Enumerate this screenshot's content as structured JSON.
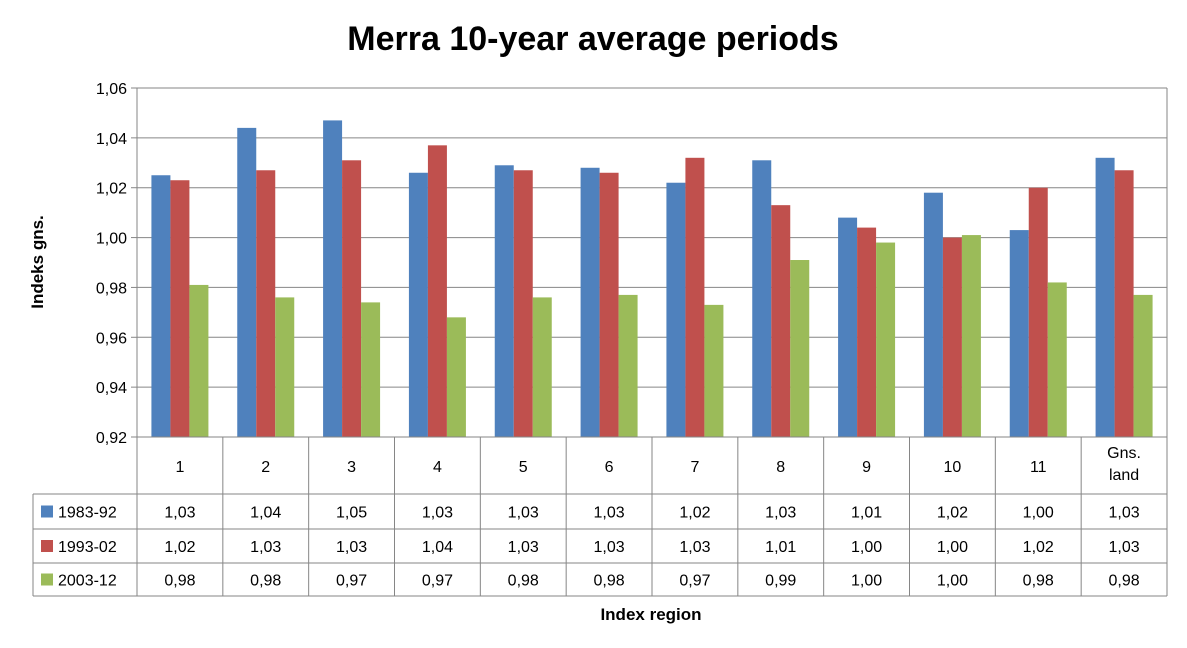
{
  "chart_data": {
    "type": "bar",
    "title": "Merra 10-year average periods",
    "xlabel": "Index region",
    "ylabel": "Indeks gns.",
    "ylim": [
      0.92,
      1.06
    ],
    "yticks": [
      "0,92",
      "0,94",
      "0,96",
      "0,98",
      "1,00",
      "1,02",
      "1,04",
      "1,06"
    ],
    "grid": true,
    "legend": "data-table-left",
    "categories": [
      "1",
      "2",
      "3",
      "4",
      "5",
      "6",
      "7",
      "8",
      "9",
      "10",
      "11",
      "Gns. land"
    ],
    "series": [
      {
        "name": "1983-92",
        "color": "#4F81BD",
        "values": [
          1.025,
          1.044,
          1.047,
          1.026,
          1.029,
          1.028,
          1.022,
          1.031,
          1.008,
          1.018,
          1.003,
          1.032
        ],
        "table_values": [
          "1,03",
          "1,04",
          "1,05",
          "1,03",
          "1,03",
          "1,03",
          "1,02",
          "1,03",
          "1,01",
          "1,02",
          "1,00",
          "1,03"
        ]
      },
      {
        "name": "1993-02",
        "color": "#C0504D",
        "values": [
          1.023,
          1.027,
          1.031,
          1.037,
          1.027,
          1.026,
          1.032,
          1.013,
          1.004,
          1.0,
          1.02,
          1.027
        ],
        "table_values": [
          "1,02",
          "1,03",
          "1,03",
          "1,04",
          "1,03",
          "1,03",
          "1,03",
          "1,01",
          "1,00",
          "1,00",
          "1,02",
          "1,03"
        ]
      },
      {
        "name": "2003-12",
        "color": "#9BBB59",
        "values": [
          0.981,
          0.976,
          0.974,
          0.968,
          0.976,
          0.977,
          0.973,
          0.991,
          0.998,
          1.001,
          0.982,
          0.977
        ],
        "table_values": [
          "0,98",
          "0,98",
          "0,97",
          "0,97",
          "0,98",
          "0,98",
          "0,97",
          "0,99",
          "1,00",
          "1,00",
          "0,98",
          "0,98"
        ]
      }
    ]
  }
}
